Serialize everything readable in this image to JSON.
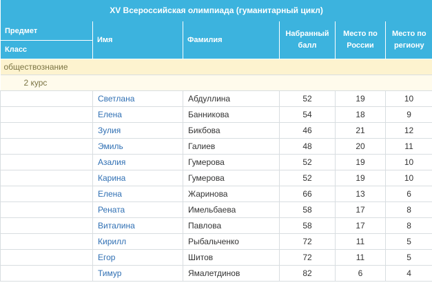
{
  "table_title": "XV Всероссийская олимпиада (гуманитарный цикл)",
  "headers": {
    "subject": "Предмет",
    "class": "Класс",
    "first_name": "Имя",
    "last_name": "Фамилия",
    "score": "Набранный балл",
    "place_russia": "Место по России",
    "place_region": "Место по региону"
  },
  "group": {
    "subject": "обществознание",
    "course": "2 курс"
  },
  "rows": [
    {
      "first_name": "Светлана",
      "last_name": "Абдуллина",
      "score": "52",
      "place_russia": "19",
      "place_region": "10"
    },
    {
      "first_name": "Елена",
      "last_name": "Банникова",
      "score": "54",
      "place_russia": "18",
      "place_region": "9"
    },
    {
      "first_name": "Зулия",
      "last_name": "Бикбова",
      "score": "46",
      "place_russia": "21",
      "place_region": "12"
    },
    {
      "first_name": "Эмиль",
      "last_name": "Галиев",
      "score": "48",
      "place_russia": "20",
      "place_region": "11"
    },
    {
      "first_name": "Азалия",
      "last_name": "Гумерова",
      "score": "52",
      "place_russia": "19",
      "place_region": "10"
    },
    {
      "first_name": "Карина",
      "last_name": "Гумерова",
      "score": "52",
      "place_russia": "19",
      "place_region": "10"
    },
    {
      "first_name": "Елена",
      "last_name": "Жаринова",
      "score": "66",
      "place_russia": "13",
      "place_region": "6"
    },
    {
      "first_name": "Рената",
      "last_name": "Имельбаева",
      "score": "58",
      "place_russia": "17",
      "place_region": "8"
    },
    {
      "first_name": "Виталина",
      "last_name": "Павлова",
      "score": "58",
      "place_russia": "17",
      "place_region": "8"
    },
    {
      "first_name": "Кирилл",
      "last_name": "Рыбальченко",
      "score": "72",
      "place_russia": "11",
      "place_region": "5"
    },
    {
      "first_name": "Егор",
      "last_name": "Шитов",
      "score": "72",
      "place_russia": "11",
      "place_region": "5"
    },
    {
      "first_name": "Тимур",
      "last_name": "Ямалетдинов",
      "score": "82",
      "place_russia": "6",
      "place_region": "4"
    }
  ],
  "colors": {
    "header_bg": "#3cb3de",
    "group_bg": "#fdf3cf",
    "subgroup_bg": "#fffbec",
    "name_link": "#2f6fb3"
  }
}
